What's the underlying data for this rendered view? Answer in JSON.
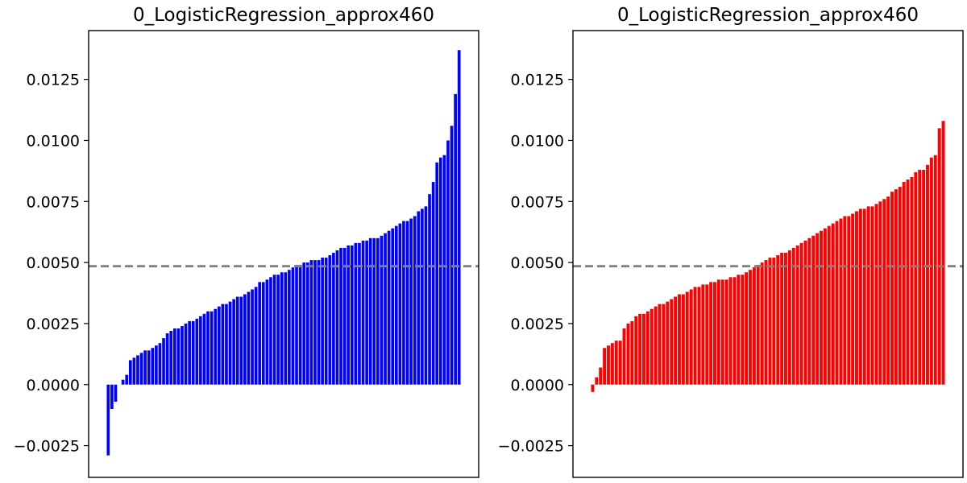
{
  "chart_data": [
    {
      "type": "bar",
      "title": "0_LogisticRegression_approx460",
      "xlabel": "",
      "ylabel": "",
      "color": "#0000ff",
      "reference_line": {
        "value": 0.00485,
        "style": "dashed",
        "color": "#808080"
      },
      "ylim": [
        -0.0038,
        0.0145
      ],
      "yticks": [
        -0.0025,
        0.0,
        0.0025,
        0.005,
        0.0075,
        0.01,
        0.0125
      ],
      "ytick_labels": [
        "−0.0025",
        "0.0000",
        "0.0025",
        "0.0050",
        "0.0075",
        "0.0100",
        "0.0125"
      ],
      "grid": false,
      "values": [
        -0.0029,
        -0.001,
        -0.0007,
        0.0,
        0.0002,
        0.0004,
        0.001,
        0.0011,
        0.0012,
        0.0013,
        0.0014,
        0.0014,
        0.0015,
        0.0016,
        0.0017,
        0.0019,
        0.0021,
        0.0022,
        0.0023,
        0.0023,
        0.0024,
        0.0025,
        0.0026,
        0.0026,
        0.0027,
        0.0028,
        0.0029,
        0.003,
        0.003,
        0.0031,
        0.0032,
        0.0033,
        0.0033,
        0.0034,
        0.0035,
        0.0036,
        0.0036,
        0.0037,
        0.0038,
        0.0039,
        0.004,
        0.0042,
        0.0042,
        0.0043,
        0.0044,
        0.0045,
        0.0045,
        0.0046,
        0.0046,
        0.0047,
        0.0048,
        0.0049,
        0.0049,
        0.005,
        0.005,
        0.0051,
        0.0051,
        0.0051,
        0.0052,
        0.0052,
        0.0053,
        0.0054,
        0.0055,
        0.0056,
        0.0056,
        0.0057,
        0.0057,
        0.0058,
        0.0058,
        0.0059,
        0.0059,
        0.006,
        0.006,
        0.006,
        0.0061,
        0.0062,
        0.0063,
        0.0064,
        0.0065,
        0.0066,
        0.0067,
        0.0067,
        0.0068,
        0.0069,
        0.0071,
        0.0072,
        0.0073,
        0.0078,
        0.0083,
        0.0091,
        0.0093,
        0.0094,
        0.01,
        0.0106,
        0.0119,
        0.0137
      ]
    },
    {
      "type": "bar",
      "title": "0_LogisticRegression_approx460",
      "xlabel": "",
      "ylabel": "",
      "color": "#ff0000",
      "reference_line": {
        "value": 0.00485,
        "style": "dashed",
        "color": "#808080"
      },
      "ylim": [
        -0.0038,
        0.0145
      ],
      "yticks": [
        -0.0025,
        0.0,
        0.0025,
        0.005,
        0.0075,
        0.01,
        0.0125
      ],
      "ytick_labels": [
        "−0.0025",
        "0.0000",
        "0.0025",
        "0.0050",
        "0.0075",
        "0.0100",
        "0.0125"
      ],
      "grid": false,
      "values": [
        -0.0003,
        0.0003,
        0.0007,
        0.0015,
        0.0016,
        0.0017,
        0.0018,
        0.0018,
        0.0023,
        0.0025,
        0.0026,
        0.0028,
        0.0029,
        0.0029,
        0.003,
        0.0031,
        0.0032,
        0.0033,
        0.0033,
        0.0034,
        0.0035,
        0.0036,
        0.0037,
        0.0037,
        0.0038,
        0.0039,
        0.004,
        0.004,
        0.0041,
        0.0041,
        0.0042,
        0.0042,
        0.0043,
        0.0043,
        0.0043,
        0.0044,
        0.0044,
        0.0045,
        0.0045,
        0.0046,
        0.0047,
        0.0048,
        0.0049,
        0.005,
        0.0051,
        0.0052,
        0.0052,
        0.0053,
        0.0054,
        0.0054,
        0.0055,
        0.0056,
        0.0057,
        0.0058,
        0.0059,
        0.006,
        0.0061,
        0.0062,
        0.0063,
        0.0064,
        0.0065,
        0.0066,
        0.0067,
        0.0068,
        0.0069,
        0.0069,
        0.007,
        0.0071,
        0.0072,
        0.0072,
        0.0073,
        0.0073,
        0.0074,
        0.0075,
        0.0076,
        0.0077,
        0.0079,
        0.008,
        0.0081,
        0.0083,
        0.0084,
        0.0085,
        0.0087,
        0.0088,
        0.0088,
        0.009,
        0.0093,
        0.0094,
        0.0105,
        0.0108
      ]
    }
  ]
}
